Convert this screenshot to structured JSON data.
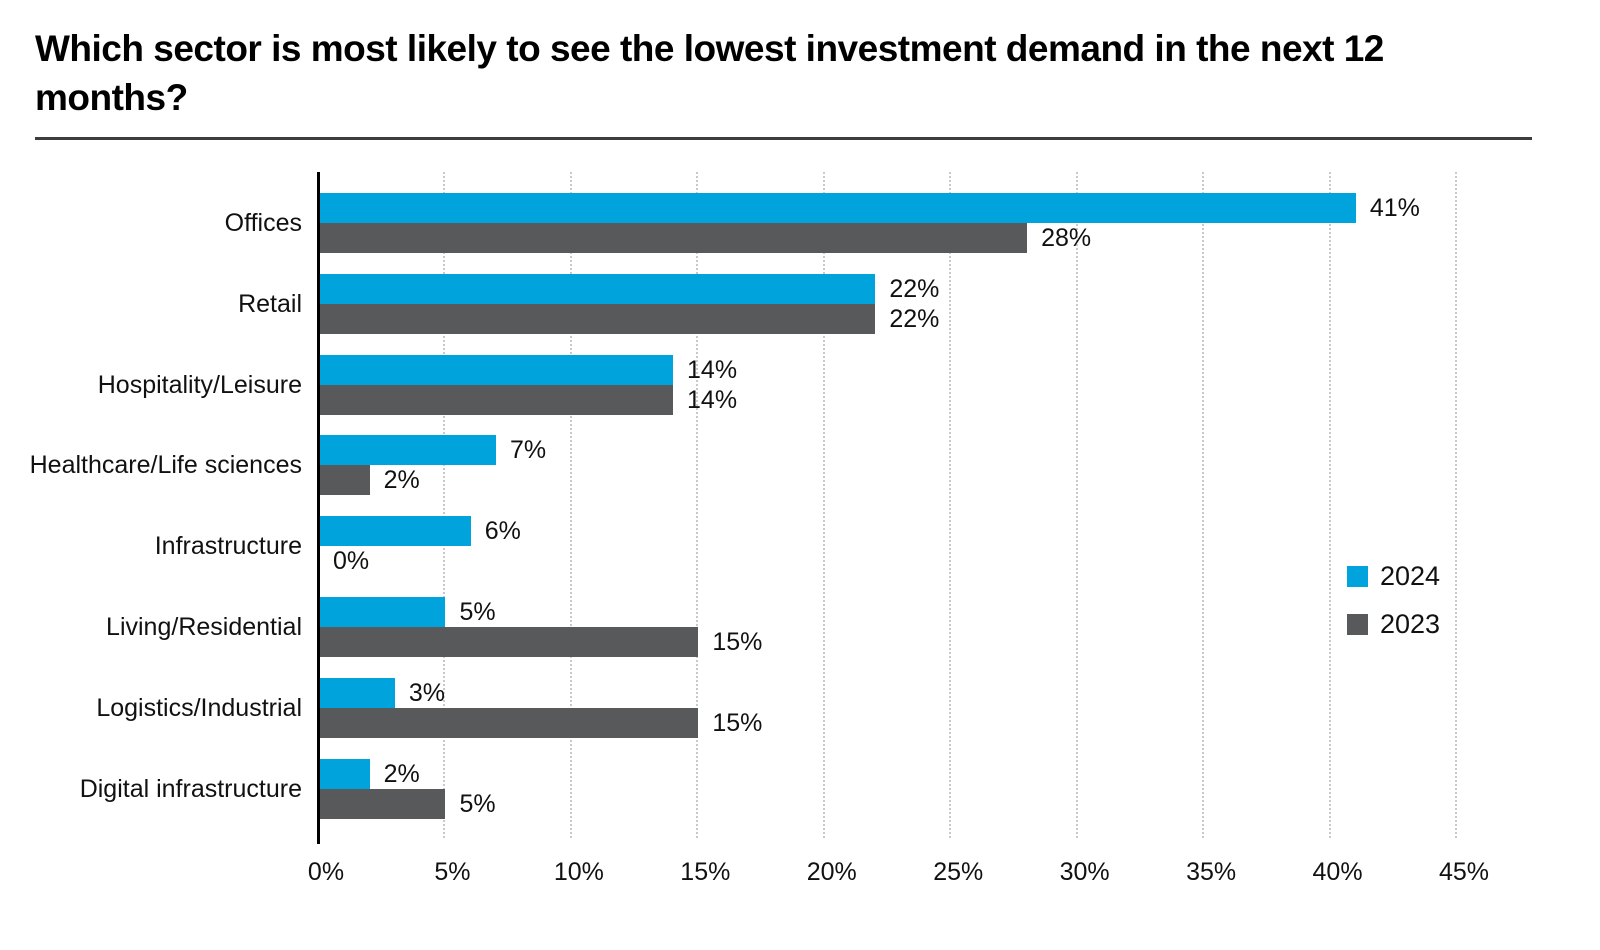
{
  "header": {
    "title": "Which sector is most likely to see the lowest investment demand in the next 12 months?"
  },
  "chart_data": {
    "type": "bar",
    "orientation": "horizontal",
    "title": "Which sector is most likely to see the lowest investment demand in the next 12 months?",
    "categories": [
      "Offices",
      "Retail",
      "Hospitality/Leisure",
      "Healthcare/Life sciences",
      "Infrastructure",
      "Living/Residential",
      "Logistics/Industrial",
      "Digital infrastructure"
    ],
    "series": [
      {
        "name": "2024",
        "color": "#00a3dc",
        "values": [
          41,
          22,
          14,
          7,
          6,
          5,
          3,
          2
        ],
        "labels": [
          "41%",
          "22%",
          "14%",
          "7%",
          "6%",
          "5%",
          "3%",
          "2%"
        ]
      },
      {
        "name": "2023",
        "color": "#58595b",
        "values": [
          28,
          22,
          14,
          2,
          0,
          15,
          15,
          5
        ],
        "labels": [
          "28%",
          "22%",
          "14%",
          "2%",
          "0%",
          "15%",
          "15%",
          "5%"
        ]
      }
    ],
    "xlabel": "",
    "ylabel": "",
    "xlim": [
      0,
      45
    ],
    "xticks": [
      0,
      5,
      10,
      15,
      20,
      25,
      30,
      35,
      40,
      45
    ],
    "xtick_labels": [
      "0%",
      "5%",
      "10%",
      "15%",
      "20%",
      "25%",
      "30%",
      "35%",
      "40%",
      "45%"
    ],
    "value_label_suffix": "%",
    "grid": "vertical-dotted",
    "legend_position": "right-middle",
    "colors": {
      "axis_line": "#000000",
      "gridline": "#c9c9c9",
      "text": "#111111",
      "title_rule": "#3d3d3d"
    }
  }
}
